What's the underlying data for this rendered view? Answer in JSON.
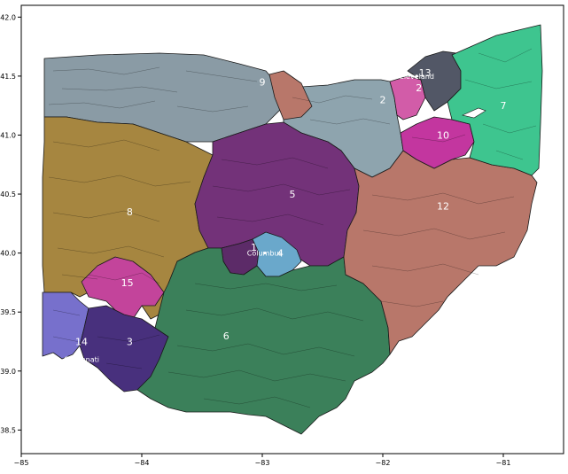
{
  "map": {
    "lon_range": [
      -85,
      -80.5
    ],
    "lat_range": [
      38.3,
      42.1
    ],
    "x_ticks": [
      {
        "value": -85,
        "label": "−85"
      },
      {
        "value": -84,
        "label": "−84"
      },
      {
        "value": -83,
        "label": "−83"
      },
      {
        "value": -82,
        "label": "−82"
      },
      {
        "value": -81,
        "label": "−81"
      }
    ],
    "y_ticks": [
      {
        "value": 42.0,
        "label": "42.0"
      },
      {
        "value": 41.5,
        "label": "41.5"
      },
      {
        "value": 41.0,
        "label": "41.0"
      },
      {
        "value": 40.5,
        "label": "40.5"
      },
      {
        "value": 40.0,
        "label": "40.0"
      },
      {
        "value": 39.5,
        "label": "39.5"
      },
      {
        "value": 39.0,
        "label": "39.0"
      },
      {
        "value": 38.5,
        "label": "38.5"
      }
    ],
    "districts": [
      {
        "label": "9",
        "color": "#8a9ba5",
        "centroid": [
          -83.0,
          41.45
        ]
      },
      {
        "label": "8",
        "color": "#a68640",
        "centroid": [
          -84.1,
          40.35
        ]
      },
      {
        "label": "5",
        "color": "#733279",
        "centroid": [
          -82.75,
          40.5
        ]
      },
      {
        "label": "4",
        "color": "#6aa8cb",
        "centroid": [
          -82.85,
          40.0
        ]
      },
      {
        "label": "1",
        "color": "#5c2b68",
        "centroid": [
          -83.07,
          40.05
        ]
      },
      {
        "label": "15",
        "color": "#c3449b",
        "centroid": [
          -84.12,
          39.75
        ]
      },
      {
        "label": "14",
        "color": "#7770cc",
        "centroid": [
          -84.5,
          39.25
        ]
      },
      {
        "label": "3",
        "color": "#48307d",
        "centroid": [
          -84.1,
          39.25
        ]
      },
      {
        "label": "6",
        "color": "#3b805a",
        "centroid": [
          -83.3,
          39.3
        ]
      },
      {
        "label": "12",
        "color": "#b8776a",
        "centroid": [
          -81.5,
          40.4
        ]
      },
      {
        "label": "2",
        "color": "#d25ca8",
        "centroid": [
          -81.7,
          41.4
        ]
      },
      {
        "label": "13",
        "color": "#525766",
        "centroid": [
          -81.65,
          41.53
        ]
      },
      {
        "label": "7",
        "color": "#3ec58f",
        "centroid": [
          -81.0,
          41.25
        ]
      },
      {
        "label": "10",
        "color": "#c3369f",
        "centroid": [
          -81.5,
          41.0
        ]
      },
      {
        "label": "2",
        "color": "#8ea4ae",
        "centroid": [
          -82.0,
          41.3
        ]
      }
    ],
    "cities": [
      {
        "name": "Cleveland",
        "lon": -81.72,
        "lat": 41.5
      },
      {
        "name": "Columbus",
        "lon": -82.98,
        "lat": 40.0
      },
      {
        "name": "Cincinnati",
        "lon": -84.5,
        "lat": 39.1
      }
    ]
  }
}
